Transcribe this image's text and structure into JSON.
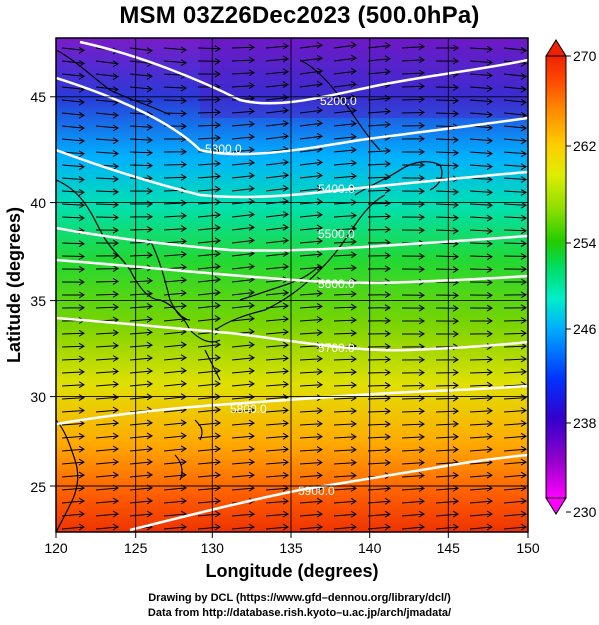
{
  "title": "MSM 03Z26Dec2023 (500.0hPa)",
  "axes": {
    "xlabel": "Longitude (degrees)",
    "ylabel": "Latitude  (degrees)",
    "x_ticks": [
      "120",
      "125",
      "130",
      "135",
      "140",
      "145",
      "150"
    ],
    "y_ticks": [
      "25",
      "30",
      "35",
      "40",
      "45"
    ],
    "x_range": [
      120,
      150
    ],
    "y_range": [
      22.4,
      47.6
    ]
  },
  "colorbar": {
    "ticks": [
      "270",
      "262",
      "254",
      "246",
      "238",
      "230"
    ],
    "range": [
      230,
      270
    ],
    "colors": [
      "#ff00ff",
      "#9900cc",
      "#3300cc",
      "#0033ff",
      "#00aaff",
      "#00eecc",
      "#00dd66",
      "#22cc00",
      "#88dd00",
      "#ddee00",
      "#ffcc00",
      "#ff8800",
      "#ff4400",
      "#ee2200"
    ]
  },
  "contour_labels": [
    "5200.0",
    "5300.0",
    "5400.0",
    "5500.0",
    "5600.0",
    "5700.0",
    "5800.0",
    "5900.0"
  ],
  "footer": {
    "line1": "Drawing by DCL (https://www.gfd–dennou.org/library/dcl/)",
    "line2": "Data from http://database.rish.kyoto–u.ac.jp/arch/jmadata/"
  }
}
